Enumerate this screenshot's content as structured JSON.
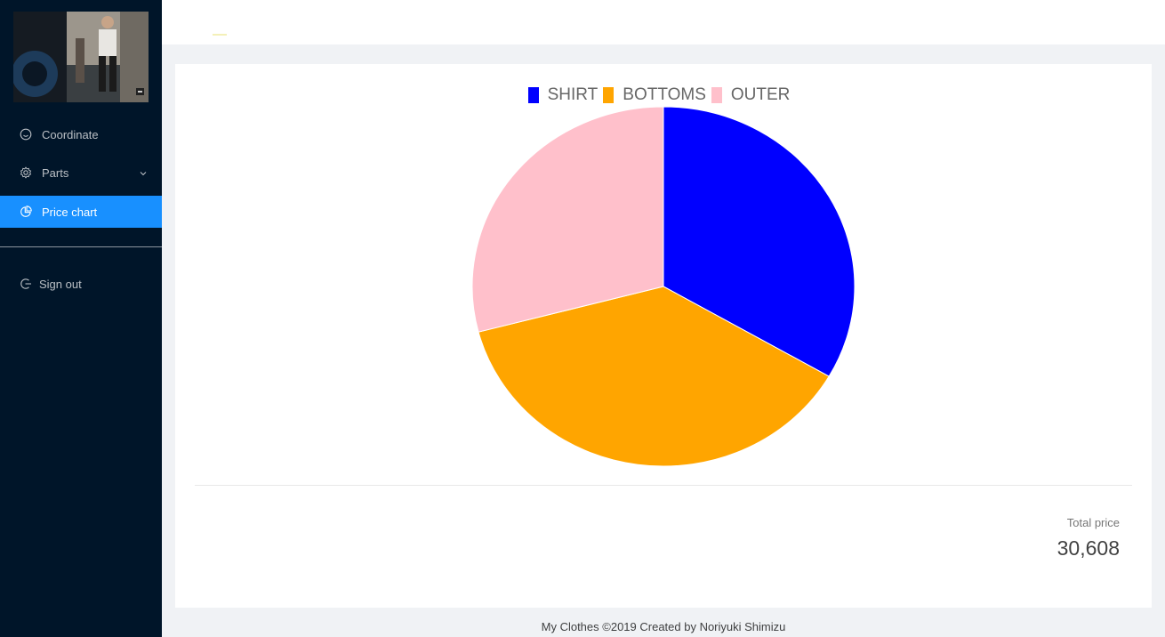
{
  "sidebar": {
    "items": [
      {
        "label": "Coordinate",
        "icon": "smile-icon"
      },
      {
        "label": "Parts",
        "icon": "gear-icon"
      },
      {
        "label": "Price chart",
        "icon": "pie-chart-icon",
        "active": true
      }
    ],
    "signout": {
      "label": "Sign out",
      "icon": "logout-icon"
    }
  },
  "colors": {
    "sider_bg": "#001529",
    "active_bg": "#1890ff",
    "shirt": "#0000ff",
    "bottoms": "#ffa500",
    "outer": "#ffc0cb"
  },
  "chart_data": {
    "type": "pie",
    "categories": [
      "SHIRT",
      "BOTTOMS",
      "OUTER"
    ],
    "values": [
      10204,
      11504,
      8900
    ],
    "colors": [
      "#0000ff",
      "#ffa500",
      "#ffc0cb"
    ],
    "legend": "top"
  },
  "summary": {
    "total_label": "Total price",
    "total_value": "30,608"
  },
  "footer": {
    "text": "My Clothes ©2019 Created by Noriyuki Shimizu"
  }
}
